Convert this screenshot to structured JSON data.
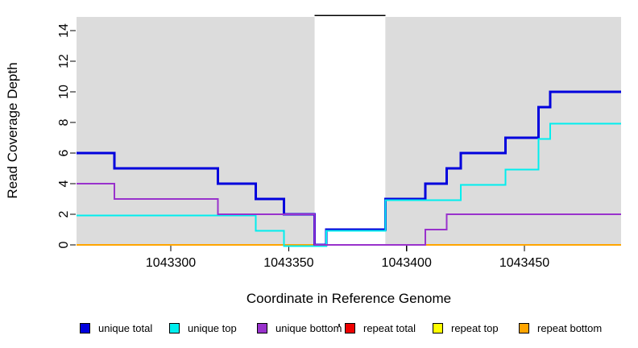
{
  "figure": {
    "background": "#FFFFFF",
    "panel_background": "#DCDCDC",
    "axis_color": "#000000"
  },
  "chart_data": {
    "type": "line",
    "subtype": "step-post",
    "title": "",
    "xlabel": "Coordinate in Reference Genome",
    "ylabel": "Read Coverage Depth",
    "xlim": [
      1043260,
      1043491
    ],
    "ylim": [
      0,
      15
    ],
    "x_ticks": [
      1043300,
      1043350,
      1043400,
      1043450
    ],
    "y_ticks": [
      0,
      2,
      4,
      6,
      8,
      10,
      12,
      14
    ],
    "grid": false,
    "legend_position": "bottom",
    "panel_background": "#DCDCDC",
    "masked_region": {
      "x_start": 1043361,
      "x_end": 1043391,
      "fill": "#FFFFFF",
      "cap_y": 15,
      "cap_color": "#000000"
    },
    "series": [
      {
        "name": "repeat total",
        "color": "#EE0000",
        "lwd": 2,
        "points": [
          [
            1043260,
            0
          ],
          [
            1043491,
            0
          ]
        ]
      },
      {
        "name": "repeat top",
        "color": "#FFFF00",
        "lwd": 2,
        "points": [
          [
            1043260,
            0
          ],
          [
            1043491,
            0
          ]
        ]
      },
      {
        "name": "repeat bottom",
        "color": "#FFA500",
        "lwd": 2,
        "points": [
          [
            1043260,
            0
          ],
          [
            1043491,
            0
          ]
        ]
      },
      {
        "name": "unique total",
        "color": "#0000DD",
        "lwd": 3,
        "points": [
          [
            1043260,
            6
          ],
          [
            1043276,
            5
          ],
          [
            1043320,
            4
          ],
          [
            1043336,
            3
          ],
          [
            1043348,
            2
          ],
          [
            1043361,
            0
          ],
          [
            1043366,
            1
          ],
          [
            1043391,
            3
          ],
          [
            1043408,
            4
          ],
          [
            1043417,
            5
          ],
          [
            1043423,
            6
          ],
          [
            1043442,
            7
          ],
          [
            1043456,
            9
          ],
          [
            1043461,
            10
          ],
          [
            1043491,
            10
          ]
        ]
      },
      {
        "name": "unique top",
        "color": "#00EEEE",
        "lwd": 2,
        "points": [
          [
            1043260,
            2
          ],
          [
            1043336,
            1
          ],
          [
            1043348,
            0
          ],
          [
            1043366,
            1
          ],
          [
            1043391,
            3
          ],
          [
            1043423,
            4
          ],
          [
            1043442,
            5
          ],
          [
            1043456,
            7
          ],
          [
            1043461,
            8
          ],
          [
            1043491,
            8
          ]
        ]
      },
      {
        "name": "unique bottom",
        "color": "#9932CC",
        "lwd": 2,
        "points": [
          [
            1043260,
            4
          ],
          [
            1043276,
            3
          ],
          [
            1043320,
            2
          ],
          [
            1043361,
            0
          ],
          [
            1043408,
            1
          ],
          [
            1043417,
            2
          ],
          [
            1043491,
            2
          ]
        ]
      }
    ],
    "legend": [
      {
        "label": "unique total",
        "color": "#0000DD"
      },
      {
        "label": "unique top",
        "color": "#00EEEE"
      },
      {
        "label": "unique bottom",
        "color": "#9932CC"
      },
      {
        "label": "repeat total",
        "color": "#EE0000"
      },
      {
        "label": "repeat top",
        "color": "#FFFF00"
      },
      {
        "label": "repeat bottom",
        "color": "#FFA500"
      }
    ]
  }
}
